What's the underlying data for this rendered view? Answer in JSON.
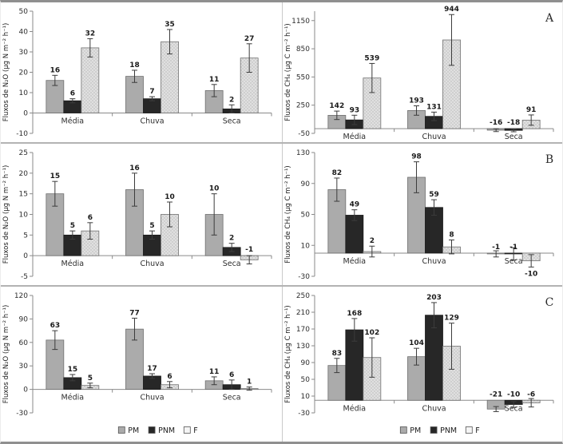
{
  "figure": {
    "background": "#ffffff",
    "border_color": "#8f8f8f",
    "row_separator_color": "#b3b3b3",
    "panel_letters": [
      "A",
      "B",
      "C"
    ]
  },
  "colors": {
    "pm": "#ababab",
    "pm_border": "#6f6f6f",
    "pnm": "#272727",
    "pnm_border": "#1a1a1a",
    "f": "#e0e0e0",
    "f_border": "#707070",
    "f_dot": "#b5b5b5",
    "f_legend": "#f5f5f5",
    "axis": "#8a8a8a",
    "error_bar": "#3c3c3c"
  },
  "legend": {
    "labels": [
      "PM",
      "PNM",
      "F"
    ]
  },
  "chart_data": [
    {
      "id": "n2o-a",
      "type": "bar",
      "panel_label": "",
      "ylabel": "Fluxos de N₂O (µg N m⁻² h⁻¹)",
      "categories": [
        "Média",
        "Chuva",
        "Seca"
      ],
      "ylim": [
        -10,
        50
      ],
      "yticks": [
        -10,
        0,
        10,
        20,
        30,
        40,
        50
      ],
      "grid": false,
      "legend_position": "none",
      "show_legend": false,
      "series": [
        {
          "name": "PM",
          "values": [
            16,
            18,
            11
          ],
          "errors": [
            2.5,
            3,
            3
          ]
        },
        {
          "name": "PNM",
          "values": [
            6,
            7,
            2
          ],
          "errors": [
            1,
            1,
            2
          ]
        },
        {
          "name": "F",
          "values": [
            32,
            35,
            27
          ],
          "errors": [
            4.5,
            6,
            7
          ]
        }
      ]
    },
    {
      "id": "ch4-a",
      "type": "bar",
      "panel_label": "A",
      "ylabel": "Fluxos de CH₄ (µg C m⁻² h⁻¹)",
      "categories": [
        "Média",
        "Chuva",
        "Seca"
      ],
      "ylim": [
        -50,
        1250
      ],
      "yticks": [
        -50,
        250,
        550,
        850,
        1150
      ],
      "grid": false,
      "legend_position": "none",
      "show_legend": false,
      "series": [
        {
          "name": "PM",
          "values": [
            142,
            193,
            -16
          ],
          "errors": [
            45,
            50,
            15
          ]
        },
        {
          "name": "PNM",
          "values": [
            93,
            131,
            -18
          ],
          "errors": [
            50,
            45,
            15
          ]
        },
        {
          "name": "F",
          "values": [
            539,
            944,
            91
          ],
          "errors": [
            155,
            270,
            55
          ]
        }
      ]
    },
    {
      "id": "n2o-b",
      "type": "bar",
      "panel_label": "",
      "ylabel": "Fluxos de N₂O (µg N m⁻² h⁻¹)",
      "categories": [
        "Média",
        "Chuva",
        "Seca"
      ],
      "ylim": [
        -5,
        25
      ],
      "yticks": [
        -5,
        0,
        5,
        10,
        15,
        20,
        25
      ],
      "grid": false,
      "legend_position": "none",
      "show_legend": false,
      "series": [
        {
          "name": "PM",
          "values": [
            15,
            16,
            10
          ],
          "errors": [
            3,
            4,
            5
          ]
        },
        {
          "name": "PNM",
          "values": [
            5,
            5,
            2
          ],
          "errors": [
            1,
            1,
            1
          ]
        },
        {
          "name": "F",
          "values": [
            6,
            10,
            -1
          ],
          "errors": [
            2,
            3,
            1
          ]
        }
      ]
    },
    {
      "id": "ch4-b",
      "type": "bar",
      "panel_label": "B",
      "ylabel": "Fluxos de CH₄ (µg C m⁻² h⁻¹)",
      "categories": [
        "Média",
        "Chuva",
        "Seca"
      ],
      "ylim": [
        -30,
        130
      ],
      "yticks": [
        -30,
        10,
        50,
        90,
        130
      ],
      "grid": false,
      "legend_position": "none",
      "show_legend": false,
      "series": [
        {
          "name": "PM",
          "values": [
            82,
            98,
            -1
          ],
          "errors": [
            15,
            20,
            4
          ]
        },
        {
          "name": "PNM",
          "values": [
            49,
            59,
            -1
          ],
          "errors": [
            7,
            10,
            8
          ]
        },
        {
          "name": "F",
          "values": [
            2,
            8,
            -10
          ],
          "errors": [
            7,
            9,
            8
          ],
          "label_below": [
            false,
            false,
            true
          ]
        }
      ]
    },
    {
      "id": "n2o-c",
      "type": "bar",
      "panel_label": "",
      "ylabel": "Fluxos de N₂O (µg N m⁻² h⁻¹)",
      "categories": [
        "Média",
        "Chuva",
        "Seca"
      ],
      "ylim": [
        -30,
        120
      ],
      "yticks": [
        -30,
        0,
        30,
        60,
        90,
        120
      ],
      "grid": false,
      "legend_position": "bottom",
      "show_legend": true,
      "series": [
        {
          "name": "PM",
          "values": [
            63,
            77,
            11
          ],
          "errors": [
            12,
            14,
            5
          ]
        },
        {
          "name": "PNM",
          "values": [
            15,
            17,
            6
          ],
          "errors": [
            4,
            3,
            6
          ]
        },
        {
          "name": "F",
          "values": [
            5,
            6,
            1
          ],
          "errors": [
            3,
            4,
            2
          ]
        }
      ]
    },
    {
      "id": "ch4-c",
      "type": "bar",
      "panel_label": "C",
      "ylabel": "Fluxos de CH₄ (µg C m⁻² h⁻¹)",
      "categories": [
        "Média",
        "Chuva",
        "Seca"
      ],
      "ylim": [
        -30,
        250
      ],
      "yticks": [
        -30,
        10,
        50,
        90,
        130,
        170,
        210,
        250
      ],
      "grid": false,
      "legend_position": "bottom",
      "show_legend": true,
      "series": [
        {
          "name": "PM",
          "values": [
            83,
            104,
            -21
          ],
          "errors": [
            17,
            20,
            6
          ]
        },
        {
          "name": "PNM",
          "values": [
            168,
            203,
            -10
          ],
          "errors": [
            27,
            30,
            7
          ]
        },
        {
          "name": "F",
          "values": [
            102,
            129,
            -6
          ],
          "errors": [
            47,
            55,
            10
          ]
        }
      ]
    }
  ]
}
